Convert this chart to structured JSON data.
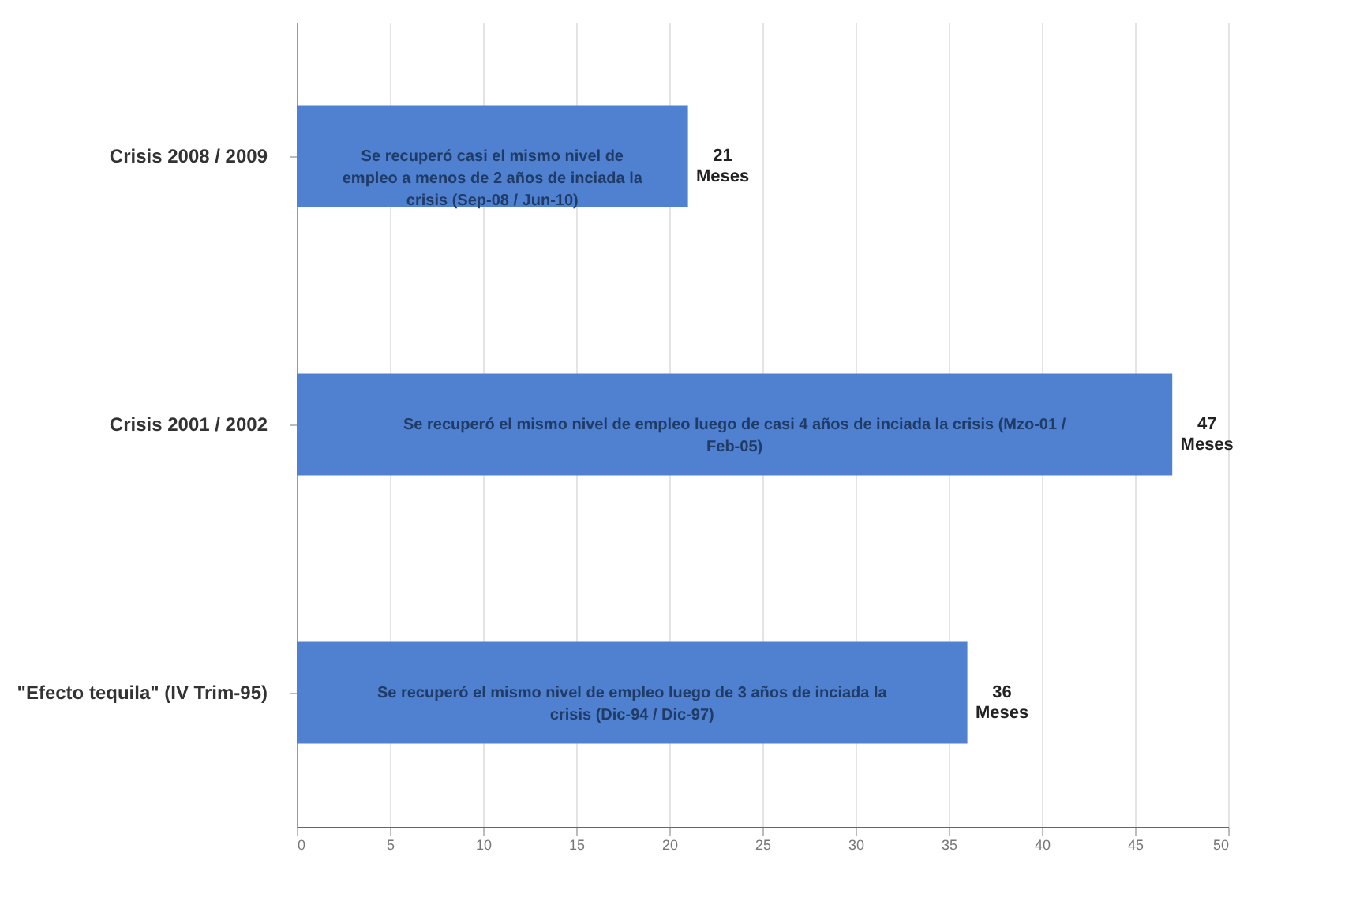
{
  "chart_data": {
    "type": "bar",
    "orientation": "horizontal",
    "categories": [
      "Crisis 2008 / 2009",
      "Crisis 2001 / 2002",
      "\"Efecto tequila\" (IV Trim-95)"
    ],
    "values": [
      21,
      47,
      36
    ],
    "value_labels": [
      "21 Meses",
      "47 Meses",
      "36 Meses"
    ],
    "color": "#4f81d0",
    "xlim": [
      0,
      50
    ],
    "xticks": [
      0,
      5,
      10,
      15,
      20,
      25,
      30,
      35,
      40,
      45,
      50
    ],
    "grid": "x",
    "annotations": [
      "Se recuperó casi el mismo nivel de empleo a menos de 2 años de inciada la crisis (Sep-08 / Jun-10)",
      "Se recuperó el mismo nivel de empleo luego de casi 4 años de inciada la crisis (Mzo-01 / Feb-05)",
      "Se recuperó el mismo nivel de empleo luego de 3 años de inciada la crisis (Dic-94 / Dic-97)"
    ]
  }
}
